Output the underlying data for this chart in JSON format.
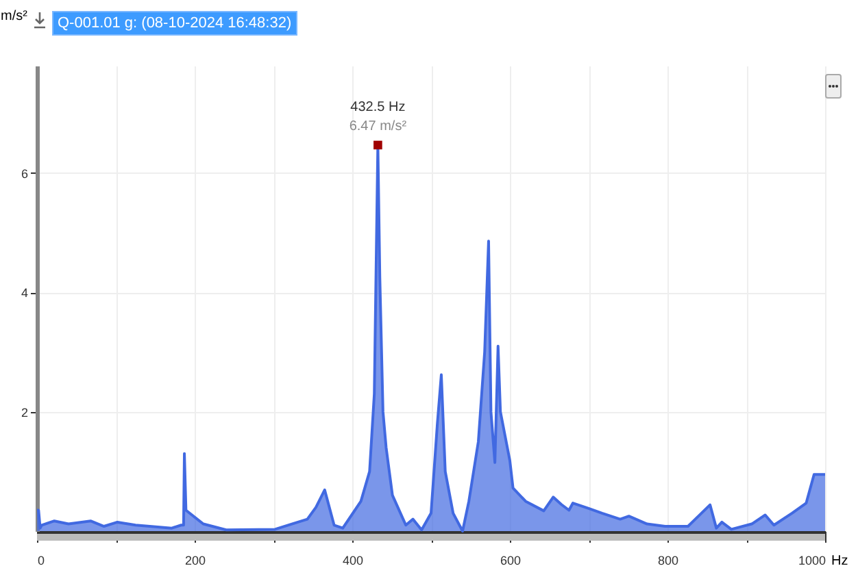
{
  "chart_data": {
    "type": "area",
    "title": "Q-001.01 g: (08-10-2024 16:48:32)",
    "xlabel": "Hz",
    "ylabel": "m/s²",
    "xlim": [
      0,
      1000
    ],
    "ylim": [
      0,
      7.8
    ],
    "xticks": [
      0,
      {
        "value": 100,
        "label": null
      },
      200,
      {
        "value": 300,
        "label": null
      },
      400,
      {
        "value": 500,
        "label": null
      },
      600,
      {
        "value": 700,
        "label": null
      },
      800,
      {
        "value": 900,
        "label": null
      },
      1000
    ],
    "yticks": [
      2,
      4,
      6
    ],
    "grid": true,
    "series": [
      {
        "color": "#4169e1",
        "x": [
          0,
          2,
          4,
          6,
          22,
          40,
          68,
          85,
          102,
          125,
          143,
          171,
          183,
          186,
          187,
          189,
          211,
          240,
          302,
          343,
          354,
          365,
          377,
          388,
          411,
          422,
          428,
          432.5,
          435,
          439,
          443,
          451,
          468,
          477,
          488,
          500,
          508,
          513,
          518,
          528,
          540,
          548,
          560,
          568,
          573,
          576,
          581,
          585,
          588,
          600,
          604,
          620,
          643,
          655,
          665,
          675,
          680,
          700,
          717,
          740,
          751,
          774,
          797,
          826,
          854,
          862,
          869,
          881,
          907,
          924,
          935,
          958,
          976,
          986,
          1000
        ],
        "values": [
          0.35,
          0.35,
          0.05,
          0.1,
          0.17,
          0.12,
          0.17,
          0.08,
          0.15,
          0.1,
          0.08,
          0.05,
          0.1,
          0.1,
          1.3,
          0.35,
          0.12,
          0.02,
          0.03,
          0.2,
          0.4,
          0.69,
          0.1,
          0.05,
          0.5,
          1.0,
          2.3,
          6.47,
          4.25,
          2.0,
          1.4,
          0.6,
          0.1,
          0.2,
          0.02,
          0.3,
          1.8,
          2.62,
          1.0,
          0.3,
          0.0,
          0.5,
          1.5,
          3.0,
          4.86,
          2.0,
          1.15,
          3.1,
          2.0,
          1.18,
          0.72,
          0.5,
          0.34,
          0.57,
          0.45,
          0.35,
          0.47,
          0.38,
          0.3,
          0.2,
          0.25,
          0.12,
          0.08,
          0.08,
          0.44,
          0.05,
          0.15,
          0.03,
          0.12,
          0.27,
          0.1,
          0.3,
          0.47,
          0.95,
          0.95
        ]
      },
      {
        "type": "scatter",
        "color": "#a00000",
        "marker": "square",
        "x": [
          432.5
        ],
        "values": [
          6.47
        ]
      }
    ],
    "annotations": [
      {
        "text": "432.5 Hz",
        "x": 432.5,
        "y": 6.47
      },
      {
        "text": "6.47 m/s²",
        "x": 432.5,
        "y": 6.47
      }
    ]
  }
}
